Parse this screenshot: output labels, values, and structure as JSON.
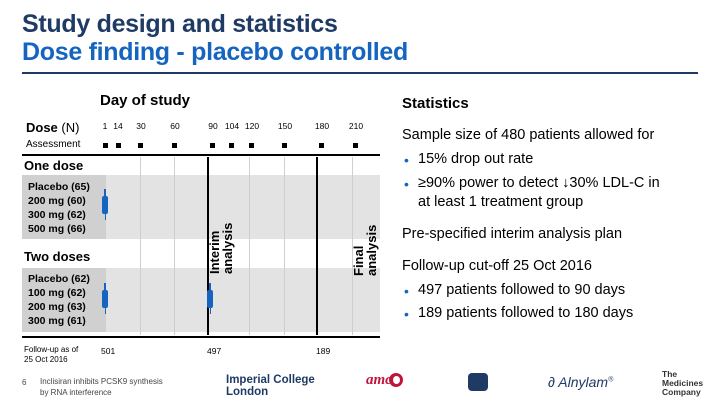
{
  "title": {
    "line1": "Study design and statistics",
    "line2": "Dose finding - placebo controlled"
  },
  "study_table": {
    "day_title": "Day of study",
    "dose_label": "Dose",
    "dose_unit": "(N)",
    "assessment_label": "Assessment",
    "days": [
      "1",
      "14",
      "30",
      "60",
      "90",
      "104",
      "120",
      "150",
      "180",
      "210"
    ],
    "groups": [
      {
        "label": "One dose",
        "arms": [
          "Placebo (65)",
          "200 mg  (60)",
          "300 mg (62)",
          "500 mg (66)"
        ]
      },
      {
        "label": "Two doses",
        "arms": [
          "Placebo (62)",
          "100 mg (62)",
          "200 mg (63)",
          "300 mg (61)"
        ]
      }
    ],
    "interim_label_line1": "Interim",
    "interim_label_line2": "analysis",
    "final_label_line1": "Final",
    "final_label_line2": "analysis",
    "follow_up_label_line1": "Follow-up as of",
    "follow_up_label_line2": "25 Oct 2016",
    "follow_up_counts": [
      "501",
      "497",
      "189"
    ],
    "colors": {
      "syringe": "#1565c0",
      "band": "#e3e3e3"
    },
    "icons": {
      "dose": "syringe-icon"
    }
  },
  "statistics": {
    "title": "Statistics",
    "sample_size": "Sample size of 480 patients allowed for",
    "sample_bullets": [
      "15% drop out rate",
      "≥90% power to detect ↓30% LDL-C in",
      "at least 1 treatment group"
    ],
    "interim_plan": "Pre-specified interim analysis plan",
    "cutoff": "Follow-up cut-off 25 Oct 2016",
    "cutoff_bullets": [
      "497 patients followed to 90 days",
      "189 patients followed to 180 days"
    ]
  },
  "footer": {
    "slide_number": "6",
    "text_line1": "Inclisiran inhibits PCSK9 synthesis",
    "text_line2": "by RNA interference",
    "logos": {
      "icl_line1": "Imperial College",
      "icl_line2": "London",
      "amc": "amc",
      "alnylam": "Alnylam",
      "tmc_line1": "The",
      "tmc_line2": "Medicines",
      "tmc_line3": "Company"
    }
  }
}
